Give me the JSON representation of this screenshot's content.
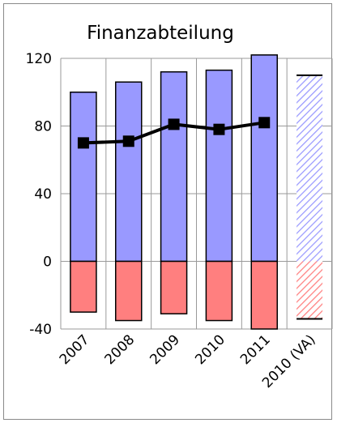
{
  "chart_data": {
    "type": "bar",
    "title": "Finanzabteilung",
    "categories": [
      "2007",
      "2008",
      "2009",
      "2010",
      "2011",
      "2010 (VA)"
    ],
    "series": [
      {
        "values": [
          100,
          106,
          112,
          113,
          122,
          110
        ],
        "color": "#9999ff",
        "kind": "bar-positive"
      },
      {
        "values": [
          -30,
          -35,
          -31,
          -35,
          -40,
          -34
        ],
        "color": "#ff7f7f",
        "kind": "bar-negative"
      },
      {
        "values": [
          70,
          71,
          81,
          78,
          82,
          null
        ],
        "color": "#000000",
        "kind": "line"
      }
    ],
    "hatched_categories": [
      "2010 (VA)"
    ],
    "ylim": [
      -40,
      120
    ],
    "yticks": [
      -40,
      0,
      40,
      80,
      120
    ],
    "grid": true,
    "xlabel": "",
    "ylabel": ""
  }
}
